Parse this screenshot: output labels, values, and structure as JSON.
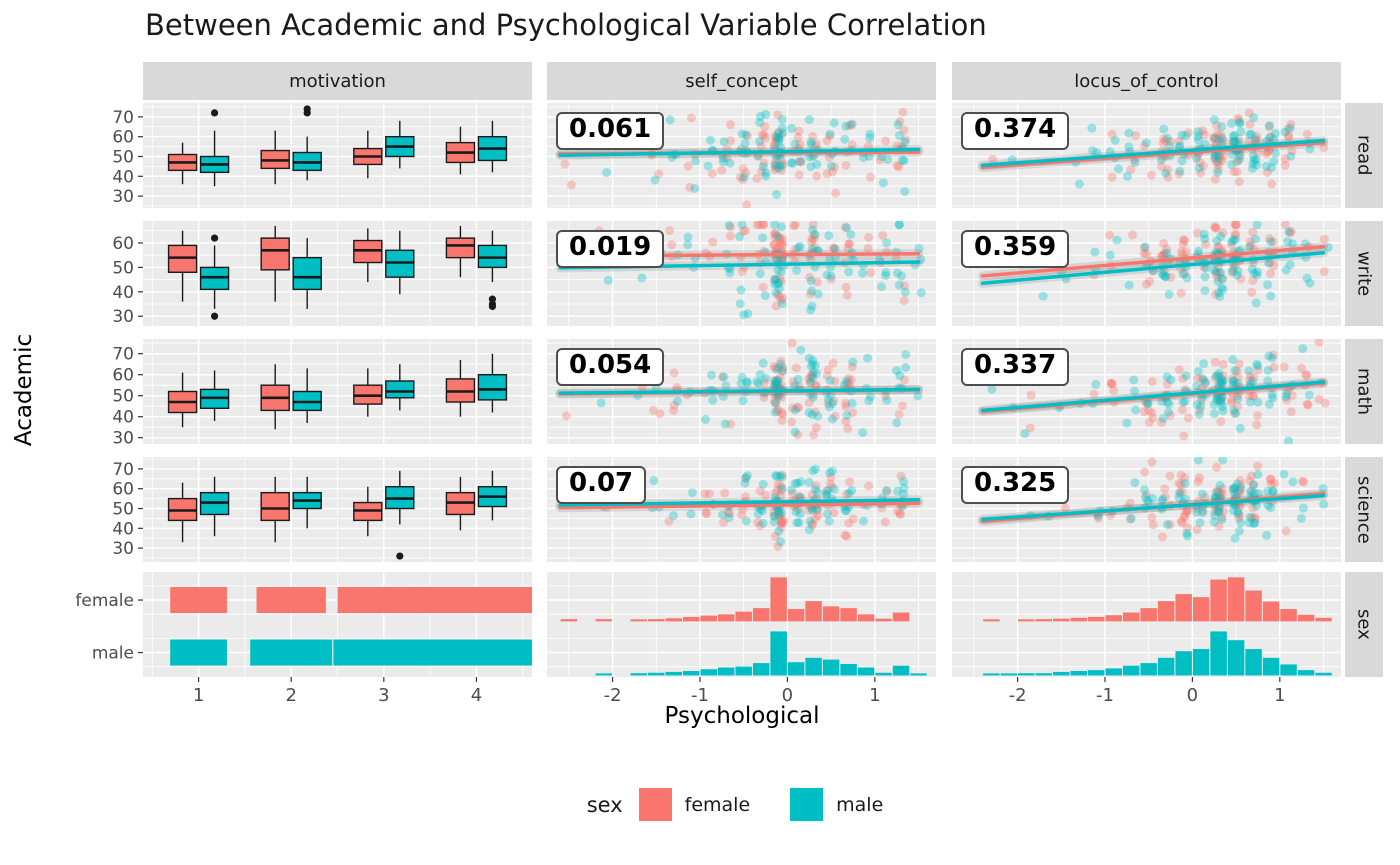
{
  "title": "Between Academic and Psychological Variable Correlation",
  "axes": {
    "x_label": "Psychological",
    "y_label": "Academic"
  },
  "legend": {
    "title": "sex",
    "items": [
      {
        "label": "female",
        "color": "#F8766D"
      },
      {
        "label": "male",
        "color": "#00BFC4"
      }
    ]
  },
  "facets": {
    "columns": [
      "motivation",
      "self_concept",
      "locus_of_control"
    ],
    "rows": [
      "read",
      "write",
      "math",
      "science",
      "sex"
    ]
  },
  "chart_data": {
    "type": "ggpairs-matrix",
    "colors": {
      "female": "#F8766D",
      "male": "#00BFC4",
      "panel_bg": "#EBEBEB",
      "strip_bg": "#D9D9D9",
      "grid": "#FFFFFF",
      "outline": "#1A1A1A",
      "tick_text": "#4D4D4D"
    },
    "x_ticks": {
      "motivation": [
        1,
        2,
        3,
        4
      ],
      "psychological": [
        -2,
        -1,
        0,
        1
      ]
    },
    "x_domains": {
      "motivation": [
        0.4,
        4.6
      ],
      "psychological": [
        -2.75,
        1.7
      ]
    },
    "row_ticks": {
      "read": [
        30,
        40,
        50,
        60,
        70
      ],
      "write": [
        30,
        40,
        50,
        60
      ],
      "math": [
        30,
        40,
        50,
        60,
        70
      ],
      "science": [
        30,
        40,
        50,
        60,
        70
      ],
      "sex": [
        "female",
        "male"
      ]
    },
    "y_domains": {
      "read": [
        24,
        77
      ],
      "write": [
        26,
        69
      ],
      "math": [
        27,
        77
      ],
      "science": [
        23,
        76
      ]
    },
    "correlations": [
      {
        "row": "read",
        "col": "self_concept",
        "value": "0.061"
      },
      {
        "row": "read",
        "col": "locus_of_control",
        "value": "0.374"
      },
      {
        "row": "write",
        "col": "self_concept",
        "value": "0.019"
      },
      {
        "row": "write",
        "col": "locus_of_control",
        "value": "0.359"
      },
      {
        "row": "math",
        "col": "self_concept",
        "value": "0.054"
      },
      {
        "row": "math",
        "col": "locus_of_control",
        "value": "0.337"
      },
      {
        "row": "science",
        "col": "self_concept",
        "value": "0.07"
      },
      {
        "row": "science",
        "col": "locus_of_control",
        "value": "0.325"
      }
    ],
    "boxplots": {
      "read": {
        "female": [
          [
            36,
            43,
            47,
            51,
            57
          ],
          [
            36,
            44,
            48,
            53,
            63
          ],
          [
            39,
            46,
            50,
            54,
            63
          ],
          [
            41,
            47,
            52,
            57,
            65
          ]
        ],
        "male": [
          [
            35,
            42,
            46,
            50,
            63
          ],
          [
            38,
            43,
            47,
            52,
            60
          ],
          [
            44,
            50,
            55,
            60,
            68
          ],
          [
            42,
            48,
            54,
            60,
            68
          ]
        ],
        "outliers": {
          "female": [],
          "male": [
            [
              1,
              72
            ],
            [
              2,
              72
            ],
            [
              2,
              74
            ]
          ]
        }
      },
      "write": {
        "female": [
          [
            36,
            48,
            54,
            59,
            65
          ],
          [
            36,
            49,
            57,
            62,
            67
          ],
          [
            44,
            52,
            57,
            61,
            66
          ],
          [
            46,
            54,
            59,
            62,
            67
          ]
        ],
        "male": [
          [
            33,
            41,
            46,
            50,
            59
          ],
          [
            33,
            41,
            46,
            54,
            62
          ],
          [
            39,
            46,
            52,
            57,
            65
          ],
          [
            44,
            50,
            54,
            59,
            65
          ]
        ],
        "outliers": {
          "female": [],
          "male": [
            [
              1,
              62
            ],
            [
              1,
              30
            ],
            [
              4,
              37
            ],
            [
              4,
              35
            ],
            [
              4,
              34
            ]
          ]
        }
      },
      "math": {
        "female": [
          [
            35,
            42,
            47,
            52,
            61
          ],
          [
            34,
            43,
            49,
            55,
            65
          ],
          [
            40,
            46,
            50,
            55,
            63
          ],
          [
            40,
            47,
            52,
            58,
            67
          ]
        ],
        "male": [
          [
            38,
            44,
            49,
            53,
            62
          ],
          [
            37,
            43,
            47,
            52,
            63
          ],
          [
            43,
            49,
            52,
            57,
            65
          ],
          [
            42,
            48,
            53,
            60,
            70
          ]
        ],
        "outliers": {
          "female": [],
          "male": []
        }
      },
      "science": {
        "female": [
          [
            33,
            44,
            49,
            55,
            63
          ],
          [
            33,
            44,
            50,
            58,
            66
          ],
          [
            36,
            44,
            49,
            53,
            61
          ],
          [
            39,
            47,
            53,
            58,
            66
          ]
        ],
        "male": [
          [
            36,
            47,
            53,
            58,
            66
          ],
          [
            40,
            50,
            54,
            58,
            66
          ],
          [
            42,
            50,
            55,
            61,
            69
          ],
          [
            44,
            51,
            56,
            61,
            69
          ]
        ],
        "outliers": {
          "female": [],
          "male": [
            [
              3,
              26
            ]
          ]
        }
      }
    },
    "trend_lines": {
      "self_concept": {
        "read": {
          "female": [
            -2.6,
            51.3,
            1.5,
            52.2
          ],
          "male": [
            -2.6,
            50.6,
            1.5,
            53.6
          ]
        },
        "write": {
          "female": [
            -2.6,
            54.6,
            1.5,
            55.6
          ],
          "male": [
            -2.6,
            49.8,
            1.5,
            52.2
          ]
        },
        "math": {
          "female": [
            -2.6,
            50.8,
            1.5,
            52.8
          ],
          "male": [
            -2.6,
            51.2,
            1.5,
            53.0
          ]
        },
        "science": {
          "female": [
            -2.6,
            50.4,
            1.5,
            52.6
          ],
          "male": [
            -2.6,
            51.8,
            1.5,
            54.4
          ]
        }
      },
      "locus_of_control": {
        "read": {
          "female": [
            -2.4,
            44.5,
            1.5,
            57.0
          ],
          "male": [
            -2.4,
            45.5,
            1.5,
            58.0
          ]
        },
        "write": {
          "female": [
            -2.4,
            46.5,
            1.5,
            58.5
          ],
          "male": [
            -2.4,
            43.5,
            1.5,
            56.0
          ]
        },
        "math": {
          "female": [
            -2.4,
            42.5,
            1.5,
            56.0
          ],
          "male": [
            -2.4,
            43.0,
            1.5,
            56.5
          ]
        },
        "science": {
          "female": [
            -2.4,
            43.5,
            1.5,
            57.5
          ],
          "male": [
            -2.4,
            44.5,
            1.5,
            56.5
          ]
        }
      }
    },
    "histograms": {
      "self_concept": {
        "start": -2.6,
        "bin_width": 0.2,
        "female": [
          0.05,
          0,
          0.05,
          0,
          0.04,
          0.05,
          0.07,
          0.1,
          0.13,
          0.16,
          0.22,
          0.3,
          1.0,
          0.28,
          0.46,
          0.34,
          0.3,
          0.16,
          0.06,
          0.2,
          0
        ],
        "male": [
          0,
          0,
          0.04,
          0,
          0.05,
          0.06,
          0.08,
          0.1,
          0.14,
          0.18,
          0.2,
          0.28,
          1.0,
          0.3,
          0.4,
          0.36,
          0.26,
          0.18,
          0.06,
          0.22,
          0.04
        ]
      },
      "locus_of_control": {
        "start": -2.4,
        "bin_width": 0.2,
        "female": [
          0.04,
          0,
          0.04,
          0.05,
          0.06,
          0.08,
          0.1,
          0.14,
          0.2,
          0.3,
          0.46,
          0.62,
          0.55,
          0.95,
          1.0,
          0.7,
          0.45,
          0.28,
          0.15,
          0.08
        ],
        "male": [
          0.03,
          0.04,
          0.05,
          0.05,
          0.08,
          0.1,
          0.12,
          0.16,
          0.22,
          0.28,
          0.4,
          0.55,
          0.6,
          1.0,
          0.8,
          0.6,
          0.4,
          0.25,
          0.12,
          0.06
        ]
      }
    },
    "sex_counts": {
      "female": [
        27,
        33,
        44,
        59
      ],
      "male": [
        27,
        39,
        48,
        56
      ]
    },
    "scatter": {
      "n_per_sex": 90,
      "seed": 42,
      "noise_sd": {
        "self_concept": 8.5,
        "locus_of_control": 7.5
      },
      "point_opacity": 0.35
    }
  }
}
